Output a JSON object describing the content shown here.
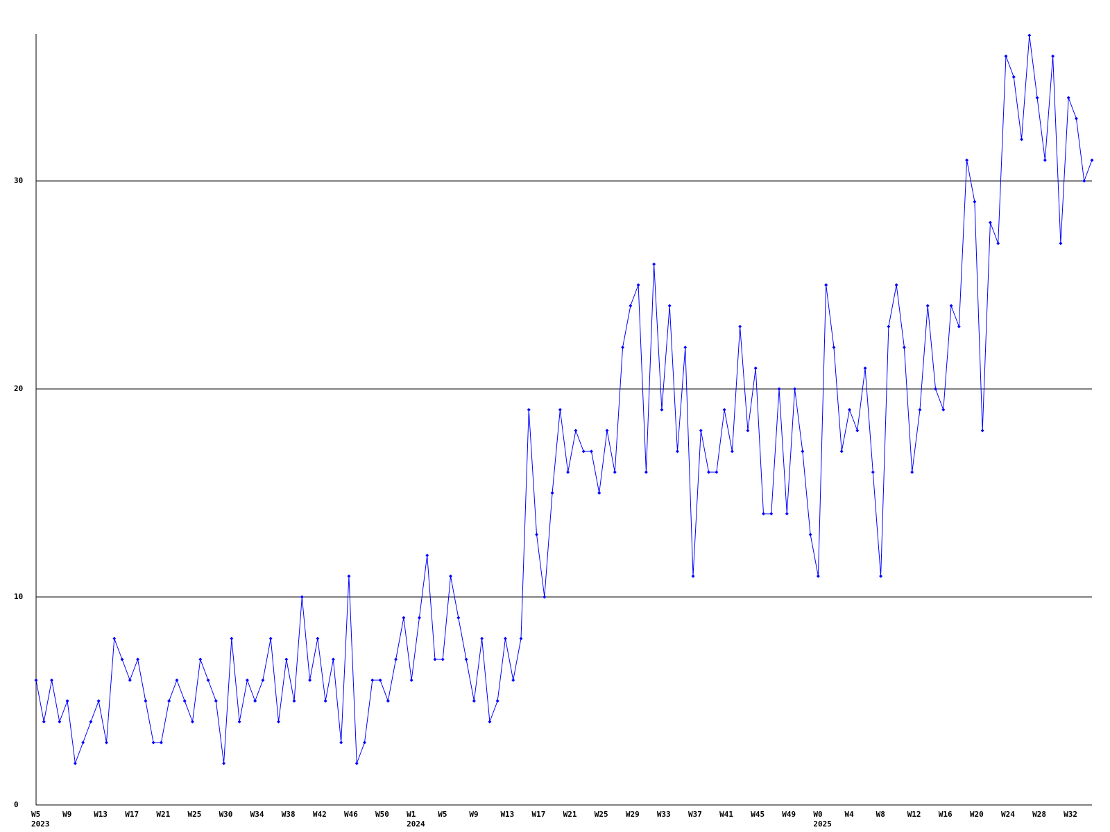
{
  "chart_data": {
    "type": "line",
    "categories": [
      "W5",
      null,
      null,
      null,
      "W9",
      null,
      null,
      null,
      "W13",
      null,
      null,
      null,
      "W17",
      null,
      null,
      null,
      "W21",
      null,
      null,
      null,
      "W25",
      null,
      null,
      null,
      "W30",
      null,
      null,
      null,
      "W34",
      null,
      null,
      null,
      "W38",
      null,
      null,
      null,
      "W42",
      null,
      null,
      null,
      "W46",
      null,
      null,
      null,
      "W50",
      null,
      null,
      null,
      "W1",
      null,
      null,
      null,
      "W5",
      null,
      null,
      null,
      "W9",
      null,
      null,
      null,
      "W13",
      null,
      null,
      null,
      "W17",
      null,
      null,
      null,
      "W21",
      null,
      null,
      null,
      "W25",
      null,
      null,
      null,
      "W29",
      null,
      null,
      null,
      "W33",
      null,
      null,
      null,
      "W37",
      null,
      null,
      null,
      "W41",
      null,
      null,
      null,
      "W45",
      null,
      null,
      null,
      "W49",
      null,
      null,
      null,
      "W0",
      null,
      null,
      null,
      "W4",
      null,
      null,
      null,
      "W8",
      null,
      null,
      null,
      "W12",
      null,
      null,
      null,
      "W16",
      null,
      null,
      null,
      "W20",
      null,
      null,
      null,
      "W24",
      null,
      null,
      null,
      "W28",
      null,
      null,
      null,
      "W32",
      null,
      null,
      null
    ],
    "category_years": [
      "2023",
      null,
      null,
      null,
      null,
      null,
      null,
      null,
      null,
      null,
      null,
      null,
      null,
      null,
      null,
      null,
      null,
      null,
      null,
      null,
      null,
      null,
      null,
      null,
      null,
      null,
      null,
      null,
      null,
      null,
      null,
      null,
      null,
      null,
      null,
      null,
      null,
      null,
      null,
      null,
      null,
      null,
      null,
      null,
      null,
      null,
      null,
      null,
      "2024",
      null,
      null,
      null,
      null,
      null,
      null,
      null,
      null,
      null,
      null,
      null,
      null,
      null,
      null,
      null,
      null,
      null,
      null,
      null,
      null,
      null,
      null,
      null,
      null,
      null,
      null,
      null,
      null,
      null,
      null,
      null,
      null,
      null,
      null,
      null,
      null,
      null,
      null,
      null,
      null,
      null,
      null,
      null,
      null,
      null,
      null,
      null,
      null,
      null,
      null,
      null,
      "2025",
      null,
      null,
      null,
      null,
      null,
      null,
      null,
      null,
      null,
      null,
      null,
      null,
      null,
      null,
      null,
      null,
      null,
      null,
      null,
      null,
      null,
      null,
      null,
      null,
      null,
      null,
      null,
      null,
      null,
      null,
      null,
      null,
      null,
      null,
      null
    ],
    "series": [
      {
        "color": "#0000ff",
        "values": [
          6,
          4,
          6,
          4,
          5,
          2,
          3,
          4,
          5,
          3,
          8,
          7,
          6,
          7,
          5,
          3,
          3,
          5,
          6,
          5,
          4,
          7,
          6,
          5,
          2,
          8,
          4,
          6,
          5,
          6,
          8,
          4,
          7,
          5,
          10,
          6,
          8,
          5,
          7,
          3,
          11,
          2,
          3,
          6,
          6,
          5,
          7,
          9,
          6,
          9,
          12,
          7,
          7,
          11,
          9,
          7,
          5,
          8,
          4,
          5,
          8,
          6,
          8,
          19,
          13,
          10,
          15,
          19,
          16,
          18,
          17,
          17,
          15,
          18,
          16,
          22,
          24,
          25,
          16,
          26,
          19,
          24,
          17,
          22,
          11,
          18,
          16,
          16,
          19,
          17,
          23,
          18,
          21,
          14,
          14,
          20,
          14,
          20,
          17,
          13,
          11,
          25,
          22,
          17,
          19,
          18,
          21,
          16,
          11,
          23,
          25,
          22,
          16,
          19,
          24,
          20,
          19,
          24,
          23,
          31,
          29,
          18,
          28,
          27,
          36,
          35,
          32,
          37,
          34,
          31,
          36,
          27,
          34,
          33,
          30,
          31
        ]
      }
    ],
    "ylim": [
      0,
      37
    ],
    "yticks": [
      0,
      10,
      20,
      30
    ],
    "grid": true
  }
}
